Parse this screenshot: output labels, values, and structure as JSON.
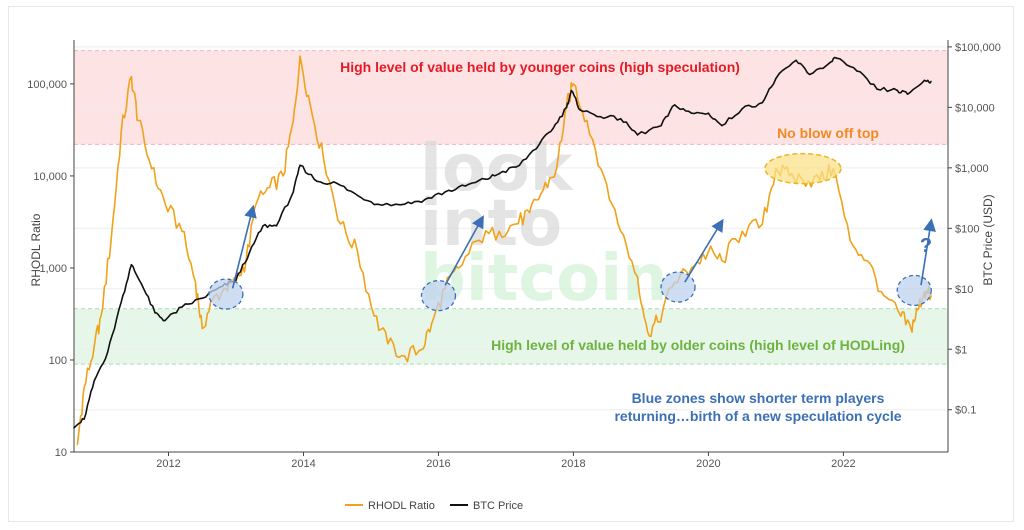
{
  "chart_data": {
    "type": "line",
    "xlabel": "",
    "x_ticks": [
      "2012",
      "2014",
      "2016",
      "2018",
      "2020",
      "2022"
    ],
    "y_left": {
      "label": "RHODL Ratio",
      "scale": "log",
      "range": [
        10,
        300000
      ],
      "ticks": [
        "10",
        "100",
        "1,000",
        "10,000",
        "100,000"
      ]
    },
    "y_right": {
      "label": "BTC Price (USD)",
      "scale": "log",
      "range": [
        0.02,
        130000
      ],
      "ticks": [
        "$0.1",
        "$1",
        "$10",
        "$100",
        "$1,000",
        "$10,000",
        "$100,000"
      ]
    },
    "legend": [
      "RHODL Ratio",
      "BTC Price"
    ],
    "legend_position": "bottom",
    "watermark": [
      "look",
      "into",
      "bitcoin"
    ],
    "series": [
      {
        "name": "RHODL Ratio",
        "color": "#F0A21A",
        "axis": "left",
        "points": [
          [
            2010.65,
            12
          ],
          [
            2010.75,
            50
          ],
          [
            2010.9,
            140
          ],
          [
            2011.0,
            300
          ],
          [
            2011.15,
            2000
          ],
          [
            2011.3,
            30000
          ],
          [
            2011.45,
            120000
          ],
          [
            2011.55,
            40000
          ],
          [
            2011.75,
            12000
          ],
          [
            2011.95,
            5000
          ],
          [
            2012.2,
            2500
          ],
          [
            2012.4,
            700
          ],
          [
            2012.5,
            220
          ],
          [
            2012.65,
            450
          ],
          [
            2012.85,
            600
          ],
          [
            2013.0,
            700
          ],
          [
            2013.15,
            1200
          ],
          [
            2013.3,
            5000
          ],
          [
            2013.5,
            7500
          ],
          [
            2013.7,
            10000
          ],
          [
            2013.85,
            40000
          ],
          [
            2013.95,
            200000
          ],
          [
            2014.1,
            60000
          ],
          [
            2014.3,
            15000
          ],
          [
            2014.55,
            3000
          ],
          [
            2014.8,
            1500
          ],
          [
            2015.05,
            300
          ],
          [
            2015.25,
            150
          ],
          [
            2015.5,
            110
          ],
          [
            2015.75,
            130
          ],
          [
            2015.9,
            250
          ],
          [
            2016.1,
            600
          ],
          [
            2016.3,
            1000
          ],
          [
            2016.6,
            2000
          ],
          [
            2016.9,
            2500
          ],
          [
            2017.15,
            3000
          ],
          [
            2017.35,
            4000
          ],
          [
            2017.55,
            7000
          ],
          [
            2017.75,
            12000
          ],
          [
            2017.9,
            60000
          ],
          [
            2018.0,
            100000
          ],
          [
            2018.2,
            40000
          ],
          [
            2018.45,
            10000
          ],
          [
            2018.7,
            2500
          ],
          [
            2018.95,
            800
          ],
          [
            2019.1,
            200
          ],
          [
            2019.25,
            260
          ],
          [
            2019.5,
            700
          ],
          [
            2019.75,
            1000
          ],
          [
            2020.0,
            1500
          ],
          [
            2020.2,
            1200
          ],
          [
            2020.5,
            2500
          ],
          [
            2020.8,
            3000
          ],
          [
            2021.0,
            12000
          ],
          [
            2021.2,
            10000
          ],
          [
            2021.4,
            9000
          ],
          [
            2021.65,
            9000
          ],
          [
            2021.85,
            12000
          ],
          [
            2022.1,
            2000
          ],
          [
            2022.35,
            1200
          ],
          [
            2022.6,
            500
          ],
          [
            2022.85,
            300
          ],
          [
            2023.0,
            220
          ],
          [
            2023.1,
            350
          ],
          [
            2023.2,
            550
          ],
          [
            2023.3,
            500
          ]
        ]
      },
      {
        "name": "BTC Price",
        "color": "#111111",
        "axis": "right",
        "points": [
          [
            2010.6,
            0.05
          ],
          [
            2010.75,
            0.07
          ],
          [
            2010.9,
            0.3
          ],
          [
            2011.1,
            0.9
          ],
          [
            2011.3,
            6
          ],
          [
            2011.45,
            25
          ],
          [
            2011.6,
            12
          ],
          [
            2011.8,
            4
          ],
          [
            2011.95,
            3
          ],
          [
            2012.2,
            5
          ],
          [
            2012.5,
            7
          ],
          [
            2012.8,
            11
          ],
          [
            2013.0,
            14
          ],
          [
            2013.2,
            40
          ],
          [
            2013.4,
            110
          ],
          [
            2013.6,
            110
          ],
          [
            2013.85,
            400
          ],
          [
            2013.95,
            1100
          ],
          [
            2014.2,
            600
          ],
          [
            2014.5,
            550
          ],
          [
            2014.8,
            350
          ],
          [
            2015.1,
            250
          ],
          [
            2015.5,
            250
          ],
          [
            2015.8,
            300
          ],
          [
            2016.1,
            400
          ],
          [
            2016.4,
            500
          ],
          [
            2016.7,
            650
          ],
          [
            2016.9,
            800
          ],
          [
            2017.2,
            1100
          ],
          [
            2017.5,
            2500
          ],
          [
            2017.7,
            4500
          ],
          [
            2017.9,
            10000
          ],
          [
            2017.97,
            19000
          ],
          [
            2018.1,
            9000
          ],
          [
            2018.4,
            7000
          ],
          [
            2018.7,
            6500
          ],
          [
            2018.95,
            3500
          ],
          [
            2019.3,
            5000
          ],
          [
            2019.5,
            11000
          ],
          [
            2019.75,
            8000
          ],
          [
            2020.0,
            8000
          ],
          [
            2020.2,
            5000
          ],
          [
            2020.5,
            9500
          ],
          [
            2020.8,
            12000
          ],
          [
            2021.0,
            30000
          ],
          [
            2021.3,
            60000
          ],
          [
            2021.5,
            35000
          ],
          [
            2021.8,
            55000
          ],
          [
            2021.9,
            65000
          ],
          [
            2022.2,
            40000
          ],
          [
            2022.5,
            20000
          ],
          [
            2022.8,
            19000
          ],
          [
            2022.95,
            16500
          ],
          [
            2023.2,
            28000
          ],
          [
            2023.3,
            27000
          ]
        ]
      }
    ],
    "annotations": {
      "top_band": {
        "text": "High level of value held by younger coins (high speculation)",
        "color": "#E41B26",
        "fill": "#FDE3E4",
        "range": [
          22000,
          230000
        ]
      },
      "bottom_band": {
        "text": "High level of value held by older coins (high level of HODLing)",
        "color": "#6DB33F",
        "fill": "#E6F7EA",
        "range": [
          90,
          360
        ]
      },
      "no_blow_off": {
        "text": "No blow off top",
        "color": "#F08A24"
      },
      "blue_note": [
        "Blue zones show shorter term players",
        "returning…birth of a new speculation cycle"
      ],
      "blue_color": "#3B6FB6",
      "question": "?",
      "blue_zones": [
        [
          2012.85,
          520
        ],
        [
          2016.0,
          500
        ],
        [
          2019.55,
          620
        ],
        [
          2023.05,
          570
        ]
      ],
      "arrows": [
        [
          [
            2012.95,
            600
          ],
          [
            2013.25,
            4500
          ]
        ],
        [
          [
            2016.1,
            650
          ],
          [
            2016.65,
            3500
          ]
        ],
        [
          [
            2019.65,
            700
          ],
          [
            2020.2,
            3200
          ]
        ],
        [
          [
            2023.15,
            650
          ],
          [
            2023.3,
            3200
          ]
        ]
      ],
      "gold_ellipse": [
        2021.4,
        12000
      ]
    }
  }
}
